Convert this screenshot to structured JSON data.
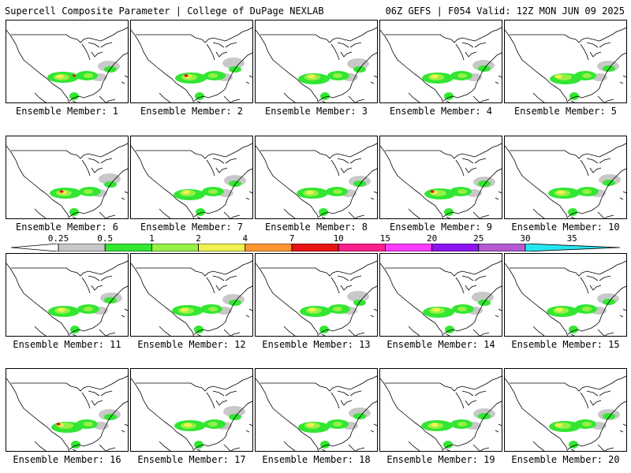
{
  "header": {
    "left_title": "Supercell Composite Parameter | College of DuPage NEXLAB",
    "right_title": "06Z GEFS | F054 Valid: 12Z MON JUN 09 2025"
  },
  "panels": [
    {
      "label": "Ensemble Member: 1"
    },
    {
      "label": "Ensemble Member: 2"
    },
    {
      "label": "Ensemble Member: 3"
    },
    {
      "label": "Ensemble Member: 4"
    },
    {
      "label": "Ensemble Member: 5"
    },
    {
      "label": "Ensemble Member: 6"
    },
    {
      "label": "Ensemble Member: 7"
    },
    {
      "label": "Ensemble Member: 8"
    },
    {
      "label": "Ensemble Member: 9"
    },
    {
      "label": "Ensemble Member: 10"
    },
    {
      "label": "Ensemble Member: 11"
    },
    {
      "label": "Ensemble Member: 12"
    },
    {
      "label": "Ensemble Member: 13"
    },
    {
      "label": "Ensemble Member: 14"
    },
    {
      "label": "Ensemble Member: 15"
    },
    {
      "label": "Ensemble Member: 16"
    },
    {
      "label": "Ensemble Member: 17"
    },
    {
      "label": "Ensemble Member: 18"
    },
    {
      "label": "Ensemble Member: 19"
    },
    {
      "label": "Ensemble Member: 20"
    }
  ],
  "colorbar": {
    "ticks": [
      "0.25",
      "0.5",
      "1",
      "2",
      "4",
      "7",
      "10",
      "15",
      "20",
      "25",
      "30",
      "35"
    ],
    "colors": [
      "#c8c8c8",
      "#32e632",
      "#96f046",
      "#f0f050",
      "#ff9632",
      "#e61414",
      "#ff1e8c",
      "#ff3cff",
      "#8c14f0",
      "#b45ad2",
      "#28e6f0"
    ]
  },
  "colors": {
    "light": "#c8c8c8",
    "green": "#32e632",
    "lightgreen": "#96f046",
    "yellow": "#f0f050",
    "orange": "#ff9632",
    "red": "#e61414"
  }
}
